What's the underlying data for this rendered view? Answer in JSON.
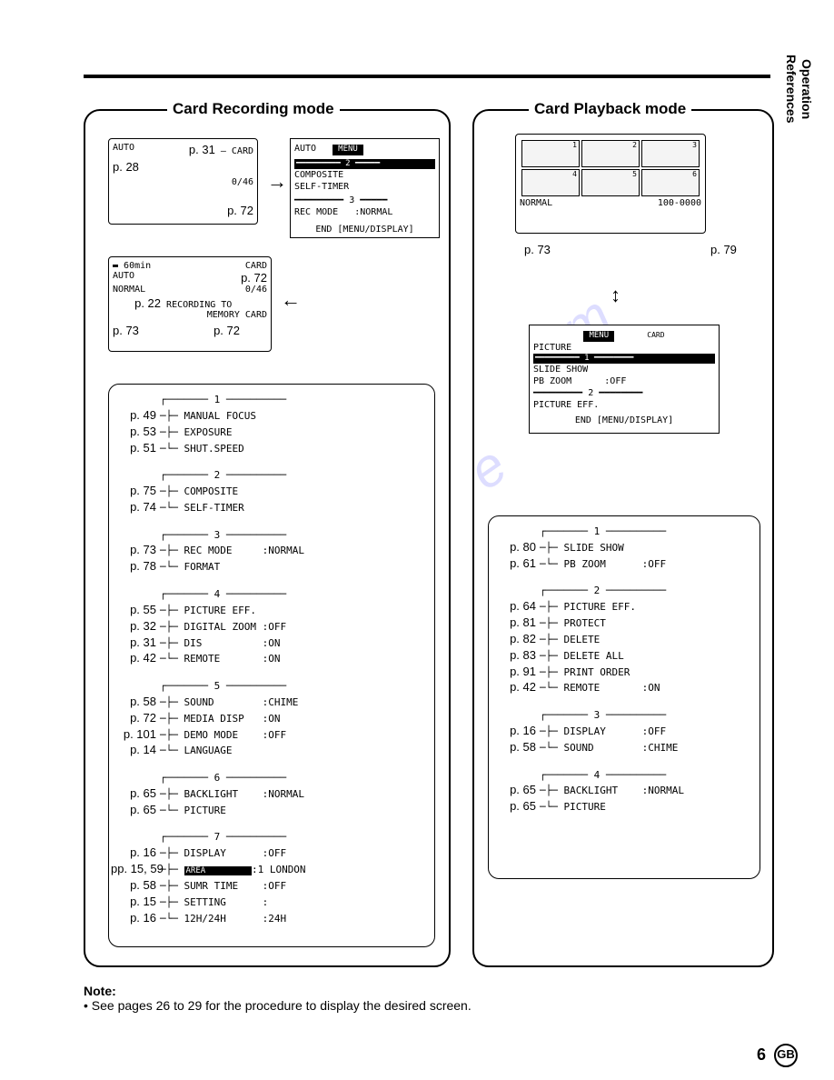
{
  "sidelabel": {
    "l1": "Operation",
    "l2": "References"
  },
  "titles": {
    "left": "Card Recording mode",
    "right": "Card Playback mode"
  },
  "rec_box1": {
    "auto": "AUTO",
    "p31": "p. 31",
    "card": "CARD",
    "p28": "p. 28",
    "count": "0/46",
    "p72": "p. 72"
  },
  "rec_menu": {
    "auto": "AUTO",
    "menu": "MENU",
    "line1": "COMPOSITE",
    "line2": "SELF-TIMER",
    "line3a": "REC MODE",
    "line3b": ":NORMAL",
    "end": "END [MENU/DISPLAY]"
  },
  "rec_box2": {
    "battery": "60min",
    "auto": "AUTO",
    "card": "CARD",
    "p72a": "p. 72",
    "normal": "NORMAL",
    "count": "0/46",
    "p22": "p. 22",
    "msg1": "RECORDING TO",
    "msg2": "MEMORY CARD",
    "p73": "p. 73",
    "p72b": "p. 72"
  },
  "rec_callout": {
    "groups": [
      {
        "num": "1",
        "items": [
          {
            "pg": "p. 49",
            "label": "MANUAL FOCUS",
            "val": ""
          },
          {
            "pg": "p. 53",
            "label": "EXPOSURE",
            "val": ""
          },
          {
            "pg": "p. 51",
            "label": "SHUT.SPEED",
            "val": ""
          }
        ]
      },
      {
        "num": "2",
        "items": [
          {
            "pg": "p. 75",
            "label": "COMPOSITE",
            "val": ""
          },
          {
            "pg": "p. 74",
            "label": "SELF-TIMER",
            "val": ""
          }
        ]
      },
      {
        "num": "3",
        "items": [
          {
            "pg": "p. 73",
            "label": "REC MODE",
            "val": ":NORMAL"
          },
          {
            "pg": "p. 78",
            "label": "FORMAT",
            "val": ""
          }
        ]
      },
      {
        "num": "4",
        "items": [
          {
            "pg": "p. 55",
            "label": "PICTURE EFF.",
            "val": ""
          },
          {
            "pg": "p. 32",
            "label": "DIGITAL ZOOM",
            "val": ":OFF"
          },
          {
            "pg": "p. 31",
            "label": "DIS",
            "val": ":ON"
          },
          {
            "pg": "p. 42",
            "label": "REMOTE",
            "val": ":ON"
          }
        ]
      },
      {
        "num": "5",
        "items": [
          {
            "pg": "p. 58",
            "label": "SOUND",
            "val": ":CHIME"
          },
          {
            "pg": "p. 72",
            "label": "MEDIA DISP",
            "val": ":ON"
          },
          {
            "pg": "p. 101",
            "label": "DEMO MODE",
            "val": ":OFF"
          },
          {
            "pg": "p. 14",
            "label": "LANGUAGE",
            "val": ""
          }
        ]
      },
      {
        "num": "6",
        "items": [
          {
            "pg": "p. 65",
            "label": "BACKLIGHT",
            "val": ":NORMAL"
          },
          {
            "pg": "p. 65",
            "label": "PICTURE",
            "val": ""
          }
        ]
      },
      {
        "num": "7",
        "items": [
          {
            "pg": "p. 16",
            "label": "DISPLAY",
            "val": ":OFF"
          },
          {
            "pg": "pp. 15, 59",
            "label": "AREA",
            "val": ":1 LONDON",
            "hl": true
          },
          {
            "pg": "p. 58",
            "label": "SUMR TIME",
            "val": ":OFF"
          },
          {
            "pg": "p. 15",
            "label": "SETTING",
            "val": ":"
          },
          {
            "pg": "p. 16",
            "label": "12H/24H",
            "val": ":24H"
          }
        ]
      }
    ]
  },
  "pb_box1": {
    "normal": "NORMAL",
    "idx": "100-0000",
    "p73": "p. 73",
    "p79": "p. 79"
  },
  "pb_menu": {
    "menu": "MENU",
    "card": "CARD",
    "line1": "PICTURE",
    "line2": "SLIDE SHOW",
    "line3a": "PB ZOOM",
    "line3b": ":OFF",
    "line4": "PICTURE EFF.",
    "end": "END [MENU/DISPLAY]"
  },
  "pb_callout": {
    "groups": [
      {
        "num": "1",
        "items": [
          {
            "pg": "p. 80",
            "label": "SLIDE SHOW",
            "val": ""
          },
          {
            "pg": "p. 61",
            "label": "PB ZOOM",
            "val": ":OFF"
          }
        ]
      },
      {
        "num": "2",
        "items": [
          {
            "pg": "p. 64",
            "label": "PICTURE EFF.",
            "val": ""
          },
          {
            "pg": "p. 81",
            "label": "PROTECT",
            "val": ""
          },
          {
            "pg": "p. 82",
            "label": "DELETE",
            "val": ""
          },
          {
            "pg": "p. 83",
            "label": "DELETE ALL",
            "val": ""
          },
          {
            "pg": "p. 91",
            "label": "PRINT ORDER",
            "val": ""
          },
          {
            "pg": "p. 42",
            "label": "REMOTE",
            "val": ":ON"
          }
        ]
      },
      {
        "num": "3",
        "items": [
          {
            "pg": "p. 16",
            "label": "DISPLAY",
            "val": ":OFF"
          },
          {
            "pg": "p. 58",
            "label": "SOUND",
            "val": ":CHIME"
          }
        ]
      },
      {
        "num": "4",
        "items": [
          {
            "pg": "p. 65",
            "label": "BACKLIGHT",
            "val": ":NORMAL"
          },
          {
            "pg": "p. 65",
            "label": "PICTURE",
            "val": ""
          }
        ]
      }
    ]
  },
  "note": {
    "h": "Note:",
    "t": "• See pages 26 to 29 for the procedure to display the desired screen."
  },
  "pagenum": {
    "n": "6",
    "gb": "GB"
  }
}
